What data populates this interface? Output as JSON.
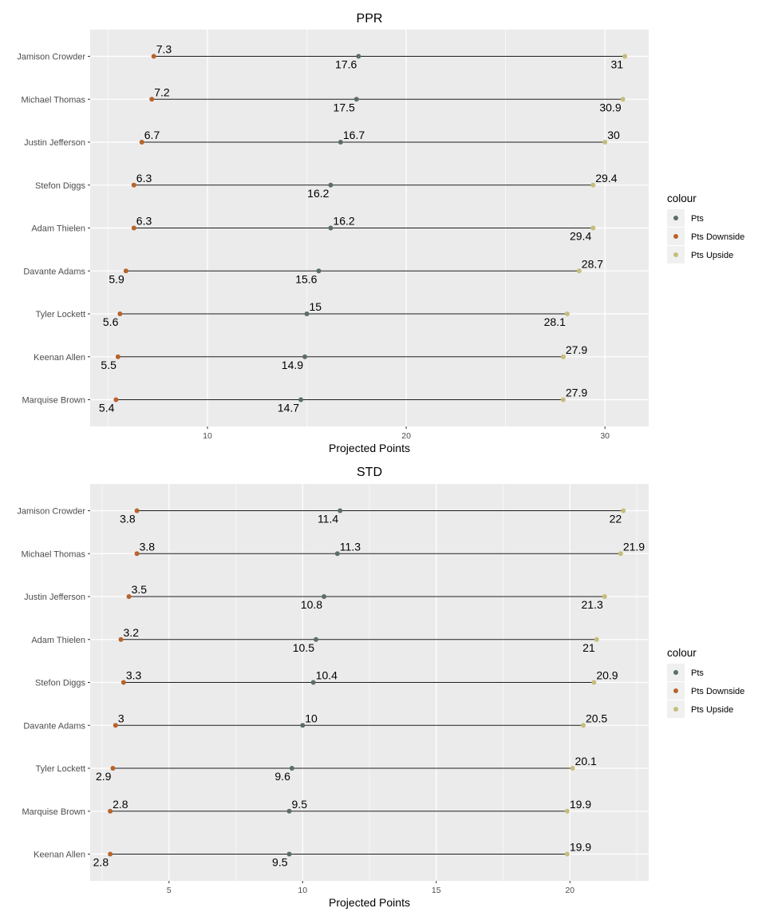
{
  "colors": {
    "panel": "#ebebeb",
    "grid": "#ffffff",
    "segment": "#1a1a1a",
    "Pts": "#5b6e66",
    "Pts Downside": "#b8632b",
    "Pts Upside": "#c6bd7d"
  },
  "legend": {
    "title": "colour",
    "items": [
      "Pts",
      "Pts Downside",
      "Pts Upside"
    ]
  },
  "chart_data": [
    {
      "type": "dumbbell",
      "title": "PPR",
      "xlabel": "Projected Points",
      "ylabel": "",
      "xlim": [
        4.1,
        32.2
      ],
      "x_ticks": [
        10,
        20,
        30
      ],
      "grid": true,
      "legend_position": "right",
      "categories": [
        "Jamison Crowder",
        "Michael Thomas",
        "Justin Jefferson",
        "Stefon Diggs",
        "Adam Thielen",
        "Davante Adams",
        "Tyler Lockett",
        "Keenan Allen",
        "Marquise Brown"
      ],
      "series": [
        {
          "name": "Pts Downside",
          "values": [
            7.3,
            7.2,
            6.7,
            6.3,
            6.3,
            5.9,
            5.6,
            5.5,
            5.4
          ],
          "label_pos": [
            "above",
            "above",
            "above",
            "above",
            "above",
            "below",
            "below",
            "below",
            "below"
          ]
        },
        {
          "name": "Pts",
          "values": [
            17.6,
            17.5,
            16.7,
            16.2,
            16.2,
            15.6,
            15,
            14.9,
            14.7
          ],
          "label_pos": [
            "below",
            "below",
            "above",
            "below",
            "above",
            "below",
            "above",
            "below",
            "below"
          ]
        },
        {
          "name": "Pts Upside",
          "values": [
            31,
            30.9,
            30,
            29.4,
            29.4,
            28.7,
            28.1,
            27.9,
            27.9
          ],
          "label_pos": [
            "below",
            "below",
            "above",
            "above",
            "below",
            "above",
            "below",
            "above",
            "above"
          ]
        }
      ]
    },
    {
      "type": "dumbbell",
      "title": "STD",
      "xlabel": "Projected Points",
      "ylabel": "",
      "xlim": [
        2.05,
        22.95
      ],
      "x_ticks": [
        5,
        10,
        15,
        20
      ],
      "grid": true,
      "legend_position": "right",
      "categories": [
        "Jamison Crowder",
        "Michael Thomas",
        "Justin Jefferson",
        "Adam Thielen",
        "Stefon Diggs",
        "Davante Adams",
        "Tyler Lockett",
        "Marquise Brown",
        "Keenan Allen"
      ],
      "series": [
        {
          "name": "Pts Downside",
          "values": [
            3.8,
            3.8,
            3.5,
            3.2,
            3.3,
            3,
            2.9,
            2.8,
            2.8
          ],
          "label_pos": [
            "below",
            "above",
            "above",
            "above",
            "above",
            "above",
            "below",
            "above",
            "below"
          ]
        },
        {
          "name": "Pts",
          "values": [
            11.4,
            11.3,
            10.8,
            10.5,
            10.4,
            10,
            9.6,
            9.5,
            9.5
          ],
          "label_pos": [
            "below",
            "above",
            "below",
            "below",
            "above",
            "above",
            "below",
            "above",
            "below"
          ]
        },
        {
          "name": "Pts Upside",
          "values": [
            22,
            21.9,
            21.3,
            21,
            20.9,
            20.5,
            20.1,
            19.9,
            19.9
          ],
          "label_pos": [
            "below",
            "above",
            "below",
            "below",
            "above",
            "above",
            "above",
            "above",
            "above"
          ]
        }
      ]
    }
  ]
}
